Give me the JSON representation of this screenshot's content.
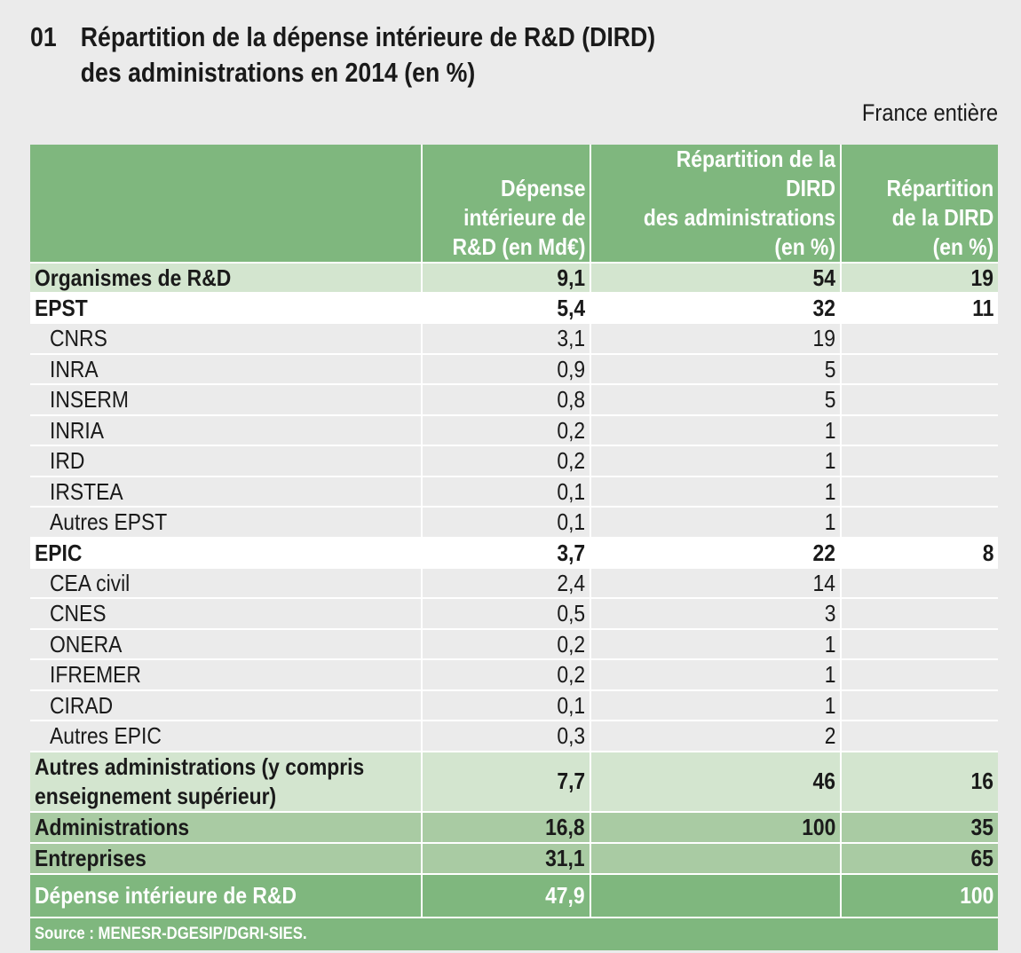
{
  "title": {
    "number": "01",
    "line1": "Répartition de la dépense intérieure de R&D (DIRD)",
    "line2": "des administrations en 2014 (en %)"
  },
  "scope": "France entière",
  "table": {
    "headers": [
      "",
      "Dépense\nintérieure de\nR&D (en Md€)",
      "Répartition de la DIRD\ndes administrations\n(en %)",
      "Répartition\nde la DIRD\n(en %)"
    ],
    "rows": [
      {
        "style": "lg",
        "cells": [
          "Organismes de R&D",
          "9,1",
          "54",
          "19"
        ]
      },
      {
        "style": "wh",
        "cells": [
          "EPST",
          "5,4",
          "32",
          "11"
        ]
      },
      {
        "style": "sub",
        "cells": [
          "CNRS",
          "3,1",
          "19",
          ""
        ]
      },
      {
        "style": "sub",
        "cells": [
          "INRA",
          "0,9",
          "5",
          ""
        ]
      },
      {
        "style": "sub",
        "cells": [
          "INSERM",
          "0,8",
          "5",
          ""
        ]
      },
      {
        "style": "sub",
        "cells": [
          "INRIA",
          "0,2",
          "1",
          ""
        ]
      },
      {
        "style": "sub",
        "cells": [
          "IRD",
          "0,2",
          "1",
          ""
        ]
      },
      {
        "style": "sub",
        "cells": [
          "IRSTEA",
          "0,1",
          "1",
          ""
        ]
      },
      {
        "style": "sub",
        "cells": [
          "Autres EPST",
          "0,1",
          "1",
          ""
        ]
      },
      {
        "style": "wh",
        "cells": [
          "EPIC",
          "3,7",
          "22",
          "8"
        ]
      },
      {
        "style": "sub",
        "cells": [
          "CEA civil",
          "2,4",
          "14",
          ""
        ]
      },
      {
        "style": "sub",
        "cells": [
          "CNES",
          "0,5",
          "3",
          ""
        ]
      },
      {
        "style": "sub",
        "cells": [
          "ONERA",
          "0,2",
          "1",
          ""
        ]
      },
      {
        "style": "sub",
        "cells": [
          "IFREMER",
          "0,2",
          "1",
          ""
        ]
      },
      {
        "style": "sub",
        "cells": [
          "CIRAD",
          "0,1",
          "1",
          ""
        ]
      },
      {
        "style": "sub",
        "cells": [
          "Autres EPIC",
          "0,3",
          "2",
          ""
        ]
      },
      {
        "style": "lg tall",
        "cells": [
          "Autres administrations (y compris enseignement supérieur)",
          "7,7",
          "46",
          "16"
        ]
      },
      {
        "style": "mg",
        "cells": [
          "Administrations",
          "16,8",
          "100",
          "35"
        ]
      },
      {
        "style": "mg",
        "cells": [
          "Entreprises",
          "31,1",
          "",
          "65"
        ]
      },
      {
        "style": "dg",
        "cells": [
          "Dépense intérieure de R&D",
          "47,9",
          "",
          "100"
        ]
      }
    ],
    "source": "Source : MENESR-DGESIP/DGRI-SIES."
  },
  "colors": {
    "background": "#ebebeb",
    "header_green": "#7fb77e",
    "light_green": "#d3e5cf",
    "mid_green": "#a9cba3"
  }
}
